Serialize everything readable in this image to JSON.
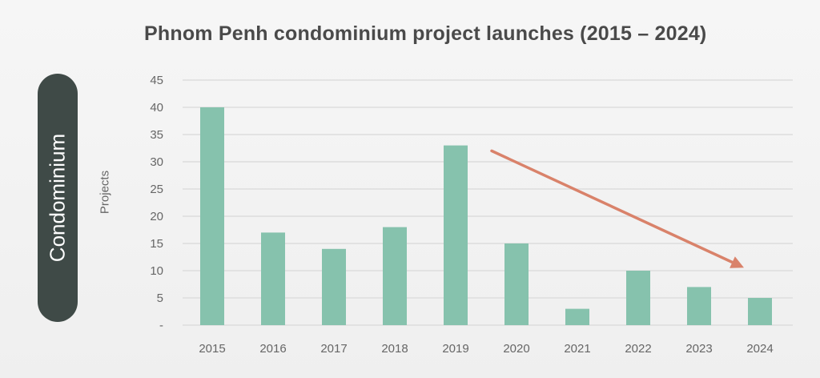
{
  "side_label": "Condominium",
  "chart_data": {
    "type": "bar",
    "title": "Phnom Penh condominium project launches (2015 – 2024)",
    "xlabel": "",
    "ylabel": "Projects",
    "categories": [
      "2015",
      "2016",
      "2017",
      "2018",
      "2019",
      "2020",
      "2021",
      "2022",
      "2023",
      "2024"
    ],
    "values": [
      40,
      17,
      14,
      18,
      33,
      15,
      3,
      10,
      7,
      5
    ],
    "ylim": [
      0,
      45
    ],
    "y_ticks": [
      "-",
      "5",
      "10",
      "15",
      "20",
      "25",
      "30",
      "35",
      "40",
      "45"
    ],
    "grid": true,
    "legend": "none",
    "bar_color": "#86c2ad",
    "trend_arrow": {
      "from_category": "2019",
      "from_value": 32,
      "to_category": "2024",
      "to_value": 11,
      "color": "#d9826a"
    }
  }
}
